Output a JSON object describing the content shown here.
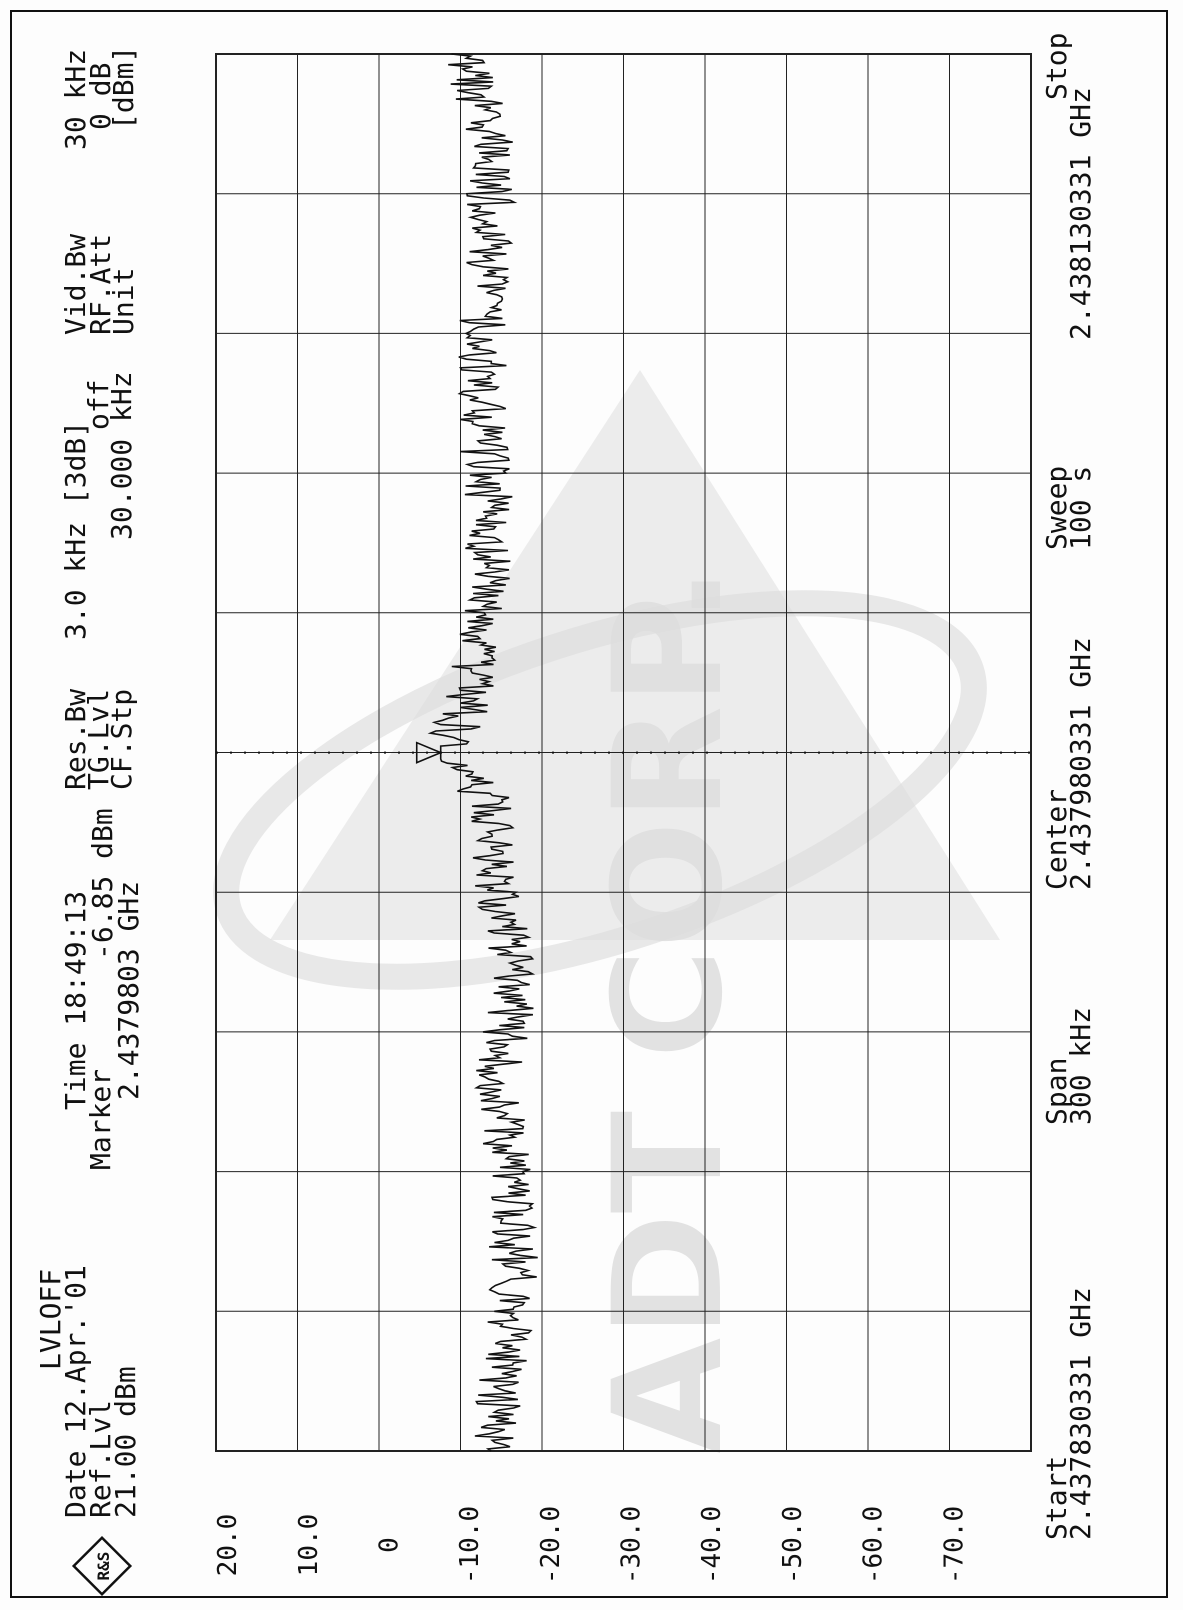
{
  "logo": {
    "text": "R&S"
  },
  "header": {
    "mode": "LVLOFF",
    "date_label": "Date",
    "date_value": "12.Apr.'01",
    "time_label": "Time",
    "time_value": "18:49:13",
    "ref_label": "Ref.Lvl",
    "ref_value": "21.00",
    "ref_unit": "dBm",
    "marker_label": "Marker",
    "marker_value": "-6.85",
    "marker_unit": "dBm",
    "marker_freq": "2.4379803",
    "marker_freq_unit": "GHz",
    "resbw_label": "Res.Bw",
    "resbw_value": "3.0 kHz",
    "resbw_note": "[3dB]",
    "tglvl_label": "TG.Lvl",
    "tglvl_value": "off",
    "cfstp_label": "CF.Stp",
    "cfstp_value": "30.000 kHz",
    "vidbw_label": "Vid.Bw",
    "vidbw_value": "30 kHz",
    "rfatt_label": "RF.Att",
    "rfatt_value": "0 dB",
    "unit_label": "Unit",
    "unit_value": "[dBm]"
  },
  "footer": {
    "start_label": "Start",
    "start_value": "2.437830331 GHz",
    "span_label": "Span",
    "span_value": "300 kHz",
    "center_label": "Center",
    "center_value": "2.437980331 GHz",
    "sweep_label": "Sweep",
    "sweep_value": "100 s",
    "stop_label": "Stop",
    "stop_value": "2.438130331 GHz"
  },
  "watermark": {
    "text": "ADT CORP."
  },
  "colors": {
    "trace": "#111111",
    "grid": "#222222",
    "watermark": "#dedede"
  },
  "chart_data": {
    "type": "line",
    "title": "",
    "xlabel": "",
    "ylabel": "",
    "xlim": [
      2.437830331,
      2.438130331
    ],
    "ylim": [
      -80,
      21
    ],
    "y_ticks": [
      "20.0",
      "10.0",
      "0",
      "-10.0",
      "-20.0",
      "-30.0",
      "-40.0",
      "-50.0",
      "-60.0",
      "-70.0"
    ],
    "grid": true,
    "orientation": "rotated-90-ccw",
    "marker": {
      "x": 2.4379803,
      "y": -6.85
    },
    "series": [
      {
        "x": [
          2.43783,
          2.43785,
          2.43787,
          2.43789,
          2.43791,
          2.43793,
          2.43795,
          2.43797,
          2.43798,
          2.43799,
          2.43801,
          2.43803,
          2.43805,
          2.43807,
          2.43809,
          2.43811,
          2.43813
        ],
        "y": [
          -13,
          -15,
          -16,
          -15,
          -14,
          -16,
          -14,
          -13,
          -7,
          -10,
          -12,
          -13,
          -12,
          -12,
          -13,
          -13,
          -10
        ]
      }
    ]
  }
}
